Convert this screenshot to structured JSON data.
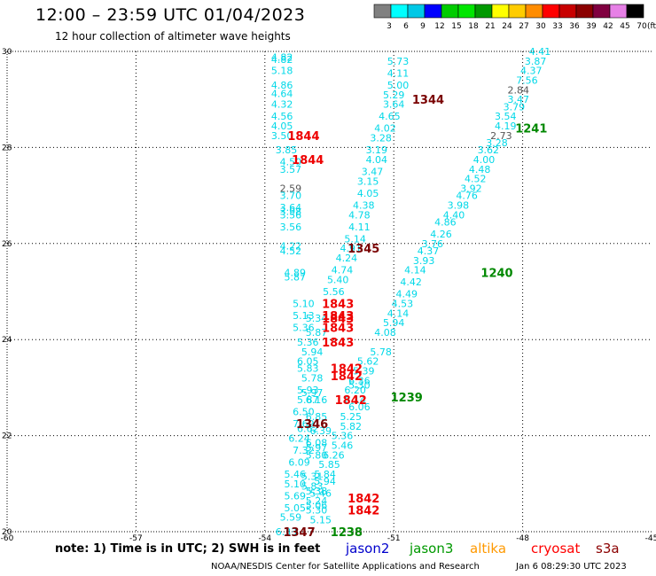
{
  "header": {
    "title": "12:00 – 23:59 UTC 01/04/2023",
    "subtitle": "12 hour collection of altimeter wave heights"
  },
  "color_scale": {
    "labels": [
      "3",
      "6",
      "9",
      "12",
      "15",
      "18",
      "21",
      "24",
      "27",
      "30",
      "33",
      "36",
      "39",
      "42",
      "45",
      "70"
    ],
    "unit": "(ft)",
    "colors": [
      "#808080",
      "#00ffff",
      "#00c8e6",
      "#0000ff",
      "#00cc00",
      "#00e600",
      "#009900",
      "#ffff00",
      "#ffcc00",
      "#ff8c00",
      "#ff0000",
      "#c80000",
      "#8b0000",
      "#800040",
      "#e680e6",
      "#000000"
    ]
  },
  "footer": {
    "note": "note:  1) Time is in UTC; 2) SWH is in feet",
    "credit": "NOAA/NESDIS Center for Satellite Applications and Research",
    "timestamp": "Jan  6 08:29:30 UTC 2023"
  },
  "satellites": [
    {
      "name": "jason2",
      "color": "#0000cc"
    },
    {
      "name": "jason3",
      "color": "#009900"
    },
    {
      "name": "altika",
      "color": "#ff9900"
    },
    {
      "name": "cryosat",
      "color": "#ff0000"
    },
    {
      "name": "s3a",
      "color": "#8b0000"
    }
  ],
  "chart_data": {
    "type": "scatter",
    "x_ticks": [
      "-60",
      "-57",
      "-54",
      "-51",
      "-48",
      "-45"
    ],
    "y_ticks": [
      "20",
      "22",
      "24",
      "26",
      "28",
      "30"
    ],
    "xlim": [
      -60,
      -45
    ],
    "ylim": [
      20,
      30
    ],
    "grid": true,
    "colors": {
      "cyan": "#00d8e8",
      "gray": "#555555",
      "red": "#ee0000",
      "green": "#008800",
      "maroon": "#7a0000"
    },
    "time_labels": [
      {
        "text": "1344",
        "lon": -50.2,
        "lat": 29.0,
        "color": "maroon"
      },
      {
        "text": "1844",
        "lon": -53.1,
        "lat": 28.25,
        "color": "red"
      },
      {
        "text": "1844",
        "lon": -53.0,
        "lat": 27.75,
        "color": "red"
      },
      {
        "text": "1241",
        "lon": -47.8,
        "lat": 28.4,
        "color": "green"
      },
      {
        "text": "1345",
        "lon": -51.7,
        "lat": 25.9,
        "color": "maroon"
      },
      {
        "text": "1240",
        "lon": -48.6,
        "lat": 25.4,
        "color": "green"
      },
      {
        "text": "1843",
        "lon": -52.3,
        "lat": 24.75,
        "color": "red"
      },
      {
        "text": "1843",
        "lon": -52.3,
        "lat": 24.5,
        "color": "red"
      },
      {
        "text": "1843",
        "lon": -52.3,
        "lat": 24.45,
        "color": "red"
      },
      {
        "text": "1843",
        "lon": -52.3,
        "lat": 24.25,
        "color": "red"
      },
      {
        "text": "1843",
        "lon": -52.3,
        "lat": 23.95,
        "color": "red"
      },
      {
        "text": "1842",
        "lon": -52.1,
        "lat": 23.4,
        "color": "red"
      },
      {
        "text": "1842",
        "lon": -52.1,
        "lat": 23.25,
        "color": "red"
      },
      {
        "text": "1239",
        "lon": -50.7,
        "lat": 22.8,
        "color": "green"
      },
      {
        "text": "1842",
        "lon": -52.0,
        "lat": 22.75,
        "color": "red"
      },
      {
        "text": "1346",
        "lon": -52.9,
        "lat": 22.25,
        "color": "maroon"
      },
      {
        "text": "1842",
        "lon": -51.7,
        "lat": 20.7,
        "color": "red"
      },
      {
        "text": "1842",
        "lon": -51.7,
        "lat": 20.45,
        "color": "red"
      },
      {
        "text": "1347",
        "lon": -53.2,
        "lat": 20.0,
        "color": "maroon"
      },
      {
        "text": "1238",
        "lon": -52.1,
        "lat": 20.0,
        "color": "green"
      }
    ],
    "points": [
      {
        "v": "4.82",
        "lon": -53.6,
        "lat": 29.88,
        "c": "cyan"
      },
      {
        "v": "4.82",
        "lon": -53.6,
        "lat": 29.83,
        "c": "cyan"
      },
      {
        "v": "5.18",
        "lon": -53.6,
        "lat": 29.6,
        "c": "cyan"
      },
      {
        "v": "4.86",
        "lon": -53.6,
        "lat": 29.3,
        "c": "cyan"
      },
      {
        "v": "4.64",
        "lon": -53.6,
        "lat": 29.12,
        "c": "cyan"
      },
      {
        "v": "4.32",
        "lon": -53.6,
        "lat": 28.9,
        "c": "cyan"
      },
      {
        "v": "4.56",
        "lon": -53.6,
        "lat": 28.65,
        "c": "cyan"
      },
      {
        "v": "4.05",
        "lon": -53.6,
        "lat": 28.45,
        "c": "cyan"
      },
      {
        "v": "3.50",
        "lon": -53.6,
        "lat": 28.25,
        "c": "cyan"
      },
      {
        "v": "3.85",
        "lon": -53.5,
        "lat": 27.95,
        "c": "cyan"
      },
      {
        "v": "4.50",
        "lon": -53.4,
        "lat": 27.7,
        "c": "cyan"
      },
      {
        "v": "3.57",
        "lon": -53.4,
        "lat": 27.55,
        "c": "cyan"
      },
      {
        "v": "2.59",
        "lon": -53.4,
        "lat": 27.15,
        "c": "gray"
      },
      {
        "v": "3.70",
        "lon": -53.4,
        "lat": 27.0,
        "c": "cyan"
      },
      {
        "v": "3.64",
        "lon": -53.4,
        "lat": 26.75,
        "c": "cyan"
      },
      {
        "v": "3.56",
        "lon": -53.4,
        "lat": 26.6,
        "c": "cyan"
      },
      {
        "v": "3.98",
        "lon": -53.4,
        "lat": 26.67,
        "c": "cyan"
      },
      {
        "v": "3.56",
        "lon": -53.4,
        "lat": 26.35,
        "c": "cyan"
      },
      {
        "v": "5.73",
        "lon": -50.9,
        "lat": 29.8,
        "c": "cyan"
      },
      {
        "v": "4.11",
        "lon": -50.9,
        "lat": 29.55,
        "c": "cyan"
      },
      {
        "v": "5.00",
        "lon": -50.9,
        "lat": 29.3,
        "c": "cyan"
      },
      {
        "v": "5.29",
        "lon": -51.0,
        "lat": 29.1,
        "c": "cyan"
      },
      {
        "v": "3.64",
        "lon": -51.0,
        "lat": 28.9,
        "c": "cyan"
      },
      {
        "v": "4.65",
        "lon": -51.1,
        "lat": 28.65,
        "c": "cyan"
      },
      {
        "v": "4.02",
        "lon": -51.2,
        "lat": 28.4,
        "c": "cyan"
      },
      {
        "v": "3.28",
        "lon": -51.3,
        "lat": 28.2,
        "c": "cyan"
      },
      {
        "v": "3.19",
        "lon": -51.4,
        "lat": 27.95,
        "c": "cyan"
      },
      {
        "v": "4.04",
        "lon": -51.4,
        "lat": 27.75,
        "c": "cyan"
      },
      {
        "v": "3.47",
        "lon": -51.5,
        "lat": 27.5,
        "c": "cyan"
      },
      {
        "v": "3.15",
        "lon": -51.6,
        "lat": 27.3,
        "c": "cyan"
      },
      {
        "v": "4.05",
        "lon": -51.6,
        "lat": 27.05,
        "c": "cyan"
      },
      {
        "v": "4.38",
        "lon": -51.7,
        "lat": 26.8,
        "c": "cyan"
      },
      {
        "v": "4.78",
        "lon": -51.8,
        "lat": 26.6,
        "c": "cyan"
      },
      {
        "v": "4.11",
        "lon": -51.8,
        "lat": 26.35,
        "c": "cyan"
      },
      {
        "v": "5.14",
        "lon": -51.9,
        "lat": 26.1,
        "c": "cyan"
      },
      {
        "v": "4.91",
        "lon": -52.0,
        "lat": 25.9,
        "c": "cyan"
      },
      {
        "v": "4.24",
        "lon": -52.1,
        "lat": 25.7,
        "c": "cyan"
      },
      {
        "v": "4.74",
        "lon": -52.2,
        "lat": 25.45,
        "c": "cyan"
      },
      {
        "v": "5.40",
        "lon": -52.3,
        "lat": 25.25,
        "c": "cyan"
      },
      {
        "v": "5.56",
        "lon": -52.4,
        "lat": 25.0,
        "c": "cyan"
      },
      {
        "v": "4.22",
        "lon": -53.4,
        "lat": 25.95,
        "c": "cyan"
      },
      {
        "v": "4.52",
        "lon": -53.4,
        "lat": 25.85,
        "c": "cyan"
      },
      {
        "v": "4.89",
        "lon": -53.3,
        "lat": 25.4,
        "c": "cyan"
      },
      {
        "v": "5.87",
        "lon": -53.3,
        "lat": 25.3,
        "c": "cyan"
      },
      {
        "v": "5.10",
        "lon": -53.1,
        "lat": 24.75,
        "c": "cyan"
      },
      {
        "v": "5.13",
        "lon": -53.1,
        "lat": 24.5,
        "c": "cyan"
      },
      {
        "v": "5.34",
        "lon": -52.8,
        "lat": 24.45,
        "c": "cyan"
      },
      {
        "v": "5.36",
        "lon": -53.1,
        "lat": 24.25,
        "c": "cyan"
      },
      {
        "v": "5.87",
        "lon": -52.8,
        "lat": 24.15,
        "c": "cyan"
      },
      {
        "v": "5.36",
        "lon": -53.0,
        "lat": 23.95,
        "c": "cyan"
      },
      {
        "v": "5.94",
        "lon": -52.9,
        "lat": 23.75,
        "c": "cyan"
      },
      {
        "v": "6.05",
        "lon": -53.0,
        "lat": 23.55,
        "c": "cyan"
      },
      {
        "v": "5.83",
        "lon": -53.0,
        "lat": 23.4,
        "c": "cyan"
      },
      {
        "v": "5.78",
        "lon": -52.9,
        "lat": 23.2,
        "c": "cyan"
      },
      {
        "v": "5.93",
        "lon": -53.0,
        "lat": 22.95,
        "c": "cyan"
      },
      {
        "v": "5.97",
        "lon": -52.9,
        "lat": 22.9,
        "c": "cyan"
      },
      {
        "v": "5.87",
        "lon": -53.0,
        "lat": 22.75,
        "c": "cyan"
      },
      {
        "v": "6.16",
        "lon": -52.8,
        "lat": 22.75,
        "c": "cyan"
      },
      {
        "v": "6.50",
        "lon": -53.1,
        "lat": 22.5,
        "c": "cyan"
      },
      {
        "v": "7.69",
        "lon": -53.1,
        "lat": 22.25,
        "c": "cyan"
      },
      {
        "v": "6.85",
        "lon": -52.8,
        "lat": 22.4,
        "c": "cyan"
      },
      {
        "v": "6.62",
        "lon": -53.0,
        "lat": 22.15,
        "c": "cyan"
      },
      {
        "v": "6.39",
        "lon": -52.7,
        "lat": 22.1,
        "c": "cyan"
      },
      {
        "v": "6.24",
        "lon": -53.2,
        "lat": 21.95,
        "c": "cyan"
      },
      {
        "v": "6.08",
        "lon": -52.8,
        "lat": 21.85,
        "c": "cyan"
      },
      {
        "v": "5.97",
        "lon": -52.8,
        "lat": 21.75,
        "c": "cyan"
      },
      {
        "v": "7.32",
        "lon": -53.1,
        "lat": 21.7,
        "c": "cyan"
      },
      {
        "v": "5.80",
        "lon": -52.8,
        "lat": 21.6,
        "c": "cyan"
      },
      {
        "v": "6.09",
        "lon": -53.2,
        "lat": 21.45,
        "c": "cyan"
      },
      {
        "v": "5.46",
        "lon": -53.3,
        "lat": 21.2,
        "c": "cyan"
      },
      {
        "v": "5.10",
        "lon": -53.3,
        "lat": 21.0,
        "c": "cyan"
      },
      {
        "v": "5.69",
        "lon": -53.3,
        "lat": 20.75,
        "c": "cyan"
      },
      {
        "v": "5.05",
        "lon": -53.3,
        "lat": 20.5,
        "c": "cyan"
      },
      {
        "v": "5.59",
        "lon": -53.4,
        "lat": 20.3,
        "c": "cyan"
      },
      {
        "v": "6.33",
        "lon": -53.5,
        "lat": 20.0,
        "c": "cyan"
      },
      {
        "v": "5.30",
        "lon": -51.8,
        "lat": 23.05,
        "c": "cyan"
      },
      {
        "v": "5.62",
        "lon": -51.6,
        "lat": 23.55,
        "c": "cyan"
      },
      {
        "v": "5.39",
        "lon": -51.7,
        "lat": 23.35,
        "c": "cyan"
      },
      {
        "v": "6.36",
        "lon": -51.8,
        "lat": 23.15,
        "c": "cyan"
      },
      {
        "v": "6.20",
        "lon": -51.9,
        "lat": 22.95,
        "c": "cyan"
      },
      {
        "v": "6.14",
        "lon": -51.9,
        "lat": 22.75,
        "c": "cyan"
      },
      {
        "v": "6.06",
        "lon": -51.8,
        "lat": 22.6,
        "c": "cyan"
      },
      {
        "v": "5.25",
        "lon": -52.0,
        "lat": 22.4,
        "c": "cyan"
      },
      {
        "v": "5.82",
        "lon": -52.0,
        "lat": 22.2,
        "c": "cyan"
      },
      {
        "v": "5.36",
        "lon": -52.2,
        "lat": 22.0,
        "c": "cyan"
      },
      {
        "v": "5.46",
        "lon": -52.2,
        "lat": 21.8,
        "c": "cyan"
      },
      {
        "v": "6.26",
        "lon": -52.4,
        "lat": 21.6,
        "c": "cyan"
      },
      {
        "v": "5.85",
        "lon": -52.5,
        "lat": 21.4,
        "c": "cyan"
      },
      {
        "v": "5.84",
        "lon": -52.6,
        "lat": 21.2,
        "c": "cyan"
      },
      {
        "v": "5.94",
        "lon": -52.6,
        "lat": 21.05,
        "c": "cyan"
      },
      {
        "v": "5.31",
        "lon": -52.9,
        "lat": 21.15,
        "c": "cyan"
      },
      {
        "v": "5.83",
        "lon": -52.9,
        "lat": 20.95,
        "c": "cyan"
      },
      {
        "v": "5.38",
        "lon": -52.8,
        "lat": 20.85,
        "c": "cyan"
      },
      {
        "v": "5.46",
        "lon": -52.7,
        "lat": 20.8,
        "c": "cyan"
      },
      {
        "v": "5.24",
        "lon": -52.8,
        "lat": 20.65,
        "c": "cyan"
      },
      {
        "v": "5.06",
        "lon": -52.8,
        "lat": 20.55,
        "c": "cyan"
      },
      {
        "v": "5.30",
        "lon": -52.8,
        "lat": 20.45,
        "c": "cyan"
      },
      {
        "v": "5.15",
        "lon": -52.7,
        "lat": 20.25,
        "c": "cyan"
      },
      {
        "v": "5.78",
        "lon": -51.3,
        "lat": 23.75,
        "c": "cyan"
      },
      {
        "v": "4.08",
        "lon": -51.2,
        "lat": 24.15,
        "c": "cyan"
      },
      {
        "v": "5.94",
        "lon": -51.0,
        "lat": 24.35,
        "c": "cyan"
      },
      {
        "v": "4.14",
        "lon": -50.9,
        "lat": 24.55,
        "c": "cyan"
      },
      {
        "v": "4.53",
        "lon": -50.8,
        "lat": 24.75,
        "c": "cyan"
      },
      {
        "v": "4.49",
        "lon": -50.7,
        "lat": 24.95,
        "c": "cyan"
      },
      {
        "v": "4.42",
        "lon": -50.6,
        "lat": 25.2,
        "c": "cyan"
      },
      {
        "v": "4.14",
        "lon": -50.5,
        "lat": 25.45,
        "c": "cyan"
      },
      {
        "v": "3.93",
        "lon": -50.3,
        "lat": 25.65,
        "c": "cyan"
      },
      {
        "v": "4.37",
        "lon": -50.2,
        "lat": 25.85,
        "c": "cyan"
      },
      {
        "v": "3.76",
        "lon": -50.1,
        "lat": 26.0,
        "c": "cyan"
      },
      {
        "v": "4.26",
        "lon": -49.9,
        "lat": 26.2,
        "c": "cyan"
      },
      {
        "v": "4.86",
        "lon": -49.8,
        "lat": 26.45,
        "c": "cyan"
      },
      {
        "v": "4.40",
        "lon": -49.6,
        "lat": 26.6,
        "c": "cyan"
      },
      {
        "v": "3.98",
        "lon": -49.5,
        "lat": 26.8,
        "c": "cyan"
      },
      {
        "v": "4.76",
        "lon": -49.3,
        "lat": 27.0,
        "c": "cyan"
      },
      {
        "v": "3.92",
        "lon": -49.2,
        "lat": 27.15,
        "c": "cyan"
      },
      {
        "v": "4.52",
        "lon": -49.1,
        "lat": 27.35,
        "c": "cyan"
      },
      {
        "v": "4.48",
        "lon": -49.0,
        "lat": 27.55,
        "c": "cyan"
      },
      {
        "v": "4.00",
        "lon": -48.9,
        "lat": 27.75,
        "c": "cyan"
      },
      {
        "v": "3.62",
        "lon": -48.8,
        "lat": 27.95,
        "c": "cyan"
      },
      {
        "v": "3.28",
        "lon": -48.6,
        "lat": 28.1,
        "c": "cyan"
      },
      {
        "v": "2.73",
        "lon": -48.5,
        "lat": 28.25,
        "c": "gray"
      },
      {
        "v": "4.19",
        "lon": -48.4,
        "lat": 28.45,
        "c": "cyan"
      },
      {
        "v": "3.54",
        "lon": -48.4,
        "lat": 28.65,
        "c": "cyan"
      },
      {
        "v": "3.79",
        "lon": -48.2,
        "lat": 28.85,
        "c": "cyan"
      },
      {
        "v": "3.47",
        "lon": -48.1,
        "lat": 29.0,
        "c": "cyan"
      },
      {
        "v": "2.84",
        "lon": -48.1,
        "lat": 29.2,
        "c": "gray"
      },
      {
        "v": "7.56",
        "lon": -47.9,
        "lat": 29.4,
        "c": "cyan"
      },
      {
        "v": "4.37",
        "lon": -47.8,
        "lat": 29.6,
        "c": "cyan"
      },
      {
        "v": "3.87",
        "lon": -47.7,
        "lat": 29.8,
        "c": "cyan"
      },
      {
        "v": "4.41",
        "lon": -47.6,
        "lat": 30.0,
        "c": "cyan"
      }
    ]
  }
}
